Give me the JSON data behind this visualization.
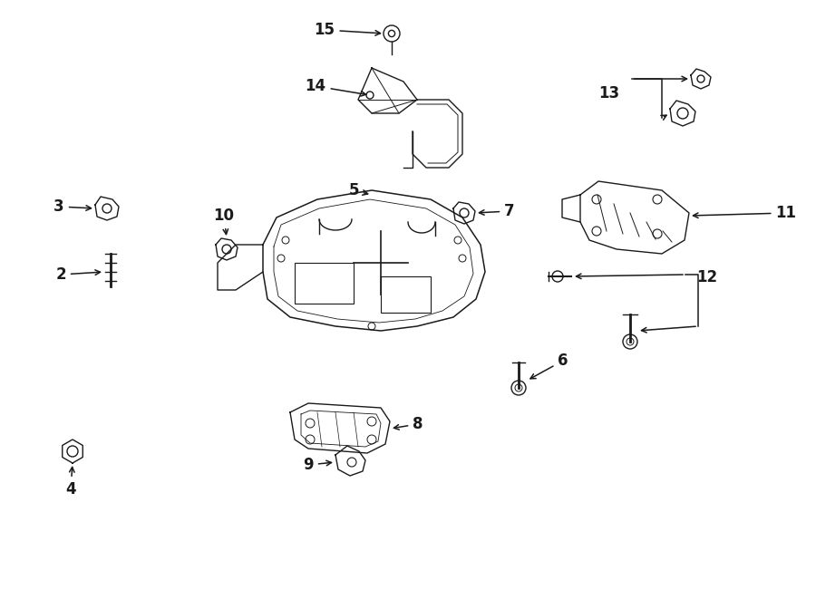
{
  "bg_color": "#ffffff",
  "line_color": "#1a1a1a",
  "fig_width": 9.0,
  "fig_height": 6.61,
  "dpi": 100,
  "label_fontsize": 12,
  "arrow_lw": 1.1,
  "part_lw": 1.0
}
